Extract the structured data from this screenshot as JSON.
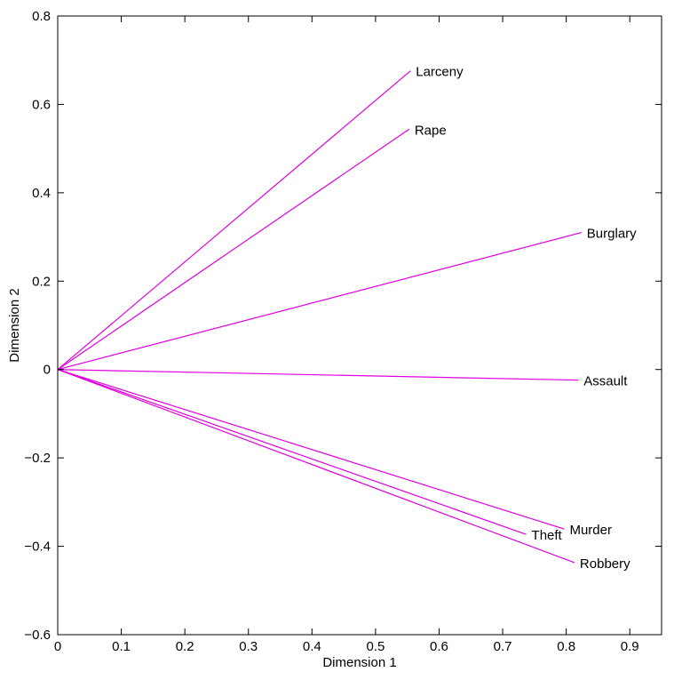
{
  "chart_data": {
    "type": "line",
    "title": "",
    "xlabel": "Dimension 1",
    "ylabel": "Dimension 2",
    "xlim": [
      0,
      0.95
    ],
    "ylim": [
      -0.6,
      0.8
    ],
    "xticks": [
      0,
      0.1,
      0.2,
      0.3,
      0.4,
      0.5,
      0.6,
      0.7,
      0.8,
      0.9
    ],
    "yticks": [
      -0.6,
      -0.4,
      -0.2,
      0,
      0.2,
      0.4,
      0.6,
      0.8
    ],
    "xtick_labels": [
      "0",
      "0.1",
      "0.2",
      "0.3",
      "0.4",
      "0.5",
      "0.6",
      "0.7",
      "0.8",
      "0.9"
    ],
    "ytick_labels": [
      "−0.6",
      "−0.4",
      "−0.2",
      "0",
      "0.2",
      "0.4",
      "0.6",
      "0.8"
    ],
    "grid": false,
    "line_color": "#e000e0",
    "vectors": [
      {
        "label": "Larceny",
        "x": 0.555,
        "y": 0.676
      },
      {
        "label": "Rape",
        "x": 0.553,
        "y": 0.544
      },
      {
        "label": "Burglary",
        "x": 0.824,
        "y": 0.31
      },
      {
        "label": "Assault",
        "x": 0.819,
        "y": -0.024
      },
      {
        "label": "Murder",
        "x": 0.797,
        "y": -0.361
      },
      {
        "label": "Theft",
        "x": 0.737,
        "y": -0.373
      },
      {
        "label": "Robbery",
        "x": 0.813,
        "y": -0.437
      }
    ]
  }
}
